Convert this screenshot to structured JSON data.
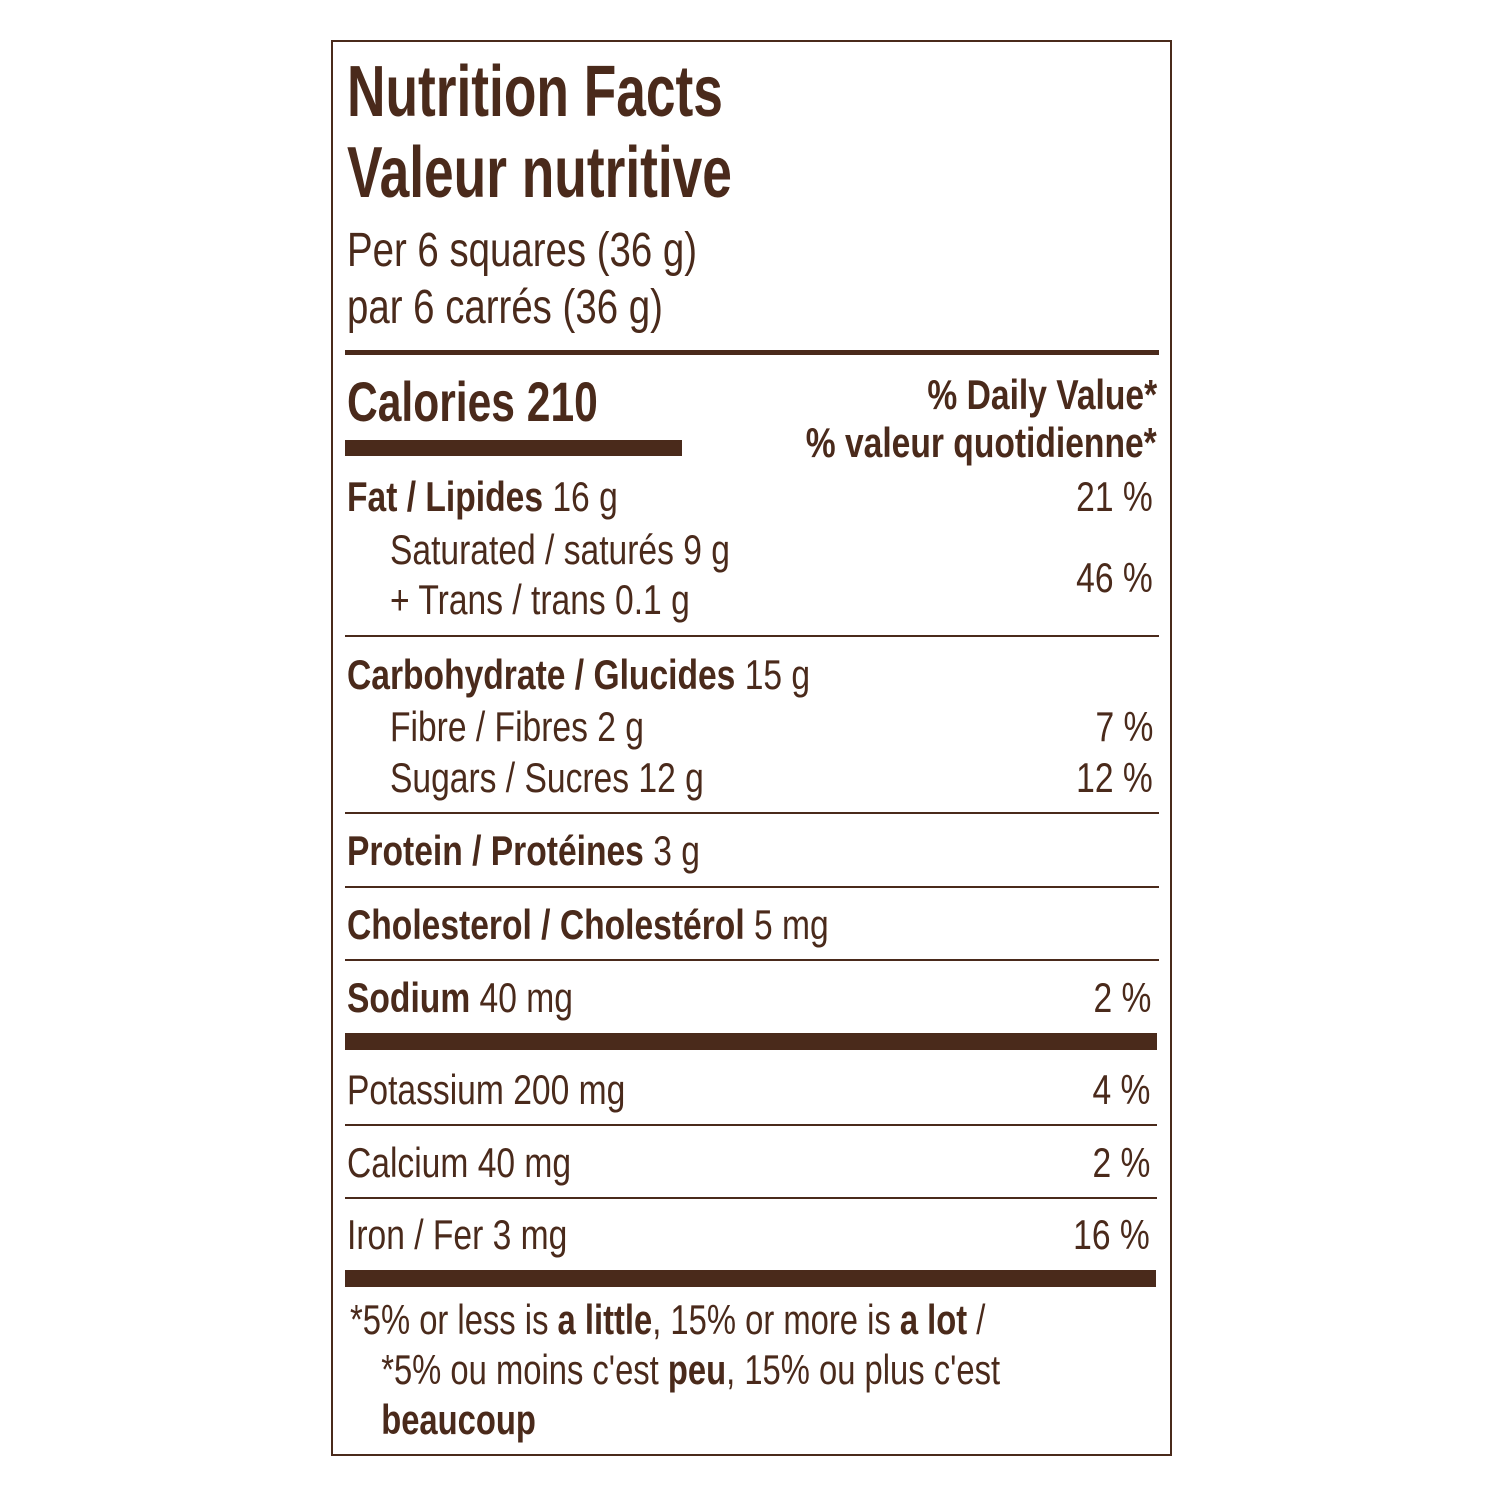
{
  "title": "Nutrition Facts",
  "title_fr": "Valeur nutritive",
  "serving": "Per 6 squares (36 g)",
  "serving_fr": "par 6 carrés (36 g)",
  "calories": {
    "label": "Calories",
    "value": 210
  },
  "daily_value": "% Daily Value*",
  "daily_value_fr": "% valeur quotidienne*",
  "fat": {
    "name": "Fat / Lipides",
    "amount": "16 g",
    "dv": "21 %"
  },
  "saturated": {
    "name": "Saturated / saturés",
    "amount": "9 g"
  },
  "trans": {
    "name": "+ Trans / trans",
    "amount": "0.1 g"
  },
  "saturated_trans_dv": "46 %",
  "carbohydrate": {
    "name": "Carbohydrate / Glucides",
    "amount": "15 g"
  },
  "fibre": {
    "name": "Fibre / Fibres",
    "amount": "2 g",
    "dv": "7 %"
  },
  "sugars": {
    "name": "Sugars / Sucres",
    "amount": "12 g",
    "dv": "12 %"
  },
  "protein": {
    "name": "Protein / Protéines",
    "amount": "3 g"
  },
  "cholesterol": {
    "name": "Cholesterol / Cholestérol",
    "amount": "5 mg"
  },
  "sodium": {
    "name": "Sodium",
    "amount": "40 mg",
    "dv": "2 %"
  },
  "potassium": {
    "name": "Potassium",
    "amount": "200 mg",
    "dv": "4 %"
  },
  "calcium": {
    "name": "Calcium",
    "amount": "40 mg",
    "dv": "2 %"
  },
  "iron": {
    "name": "Iron / Fer",
    "amount": "3 mg",
    "dv": "16 %"
  },
  "footnote": [
    {
      "text": "*5% or less is ",
      "bold": false
    },
    {
      "text": "a little",
      "bold": true
    },
    {
      "text": ", 15% or more is ",
      "bold": false
    },
    {
      "text": "a lot",
      "bold": true
    },
    {
      "text": " / *5% ou moins c'est ",
      "bold": false
    },
    {
      "text": "peu",
      "bold": true
    },
    {
      "text": ", 15% ou plus c'est ",
      "bold": false
    },
    {
      "text": "beaucoup",
      "bold": true
    }
  ]
}
